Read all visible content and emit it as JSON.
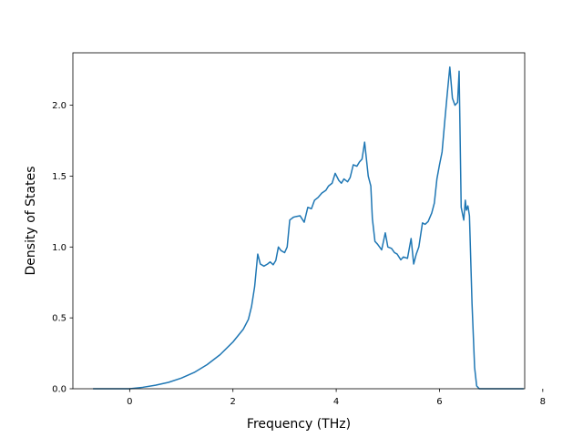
{
  "chart_data": {
    "type": "line",
    "title": "",
    "xlabel": "Frequency (THz)",
    "ylabel": "Density of States",
    "xlim": [
      -1.1,
      7.65
    ],
    "ylim": [
      0.0,
      2.37
    ],
    "xticks": [
      0,
      2,
      4,
      6,
      8
    ],
    "yticks": [
      0.0,
      0.5,
      1.0,
      1.5,
      2.0
    ],
    "xtick_labels": [
      "0",
      "2",
      "4",
      "6",
      "8"
    ],
    "ytick_labels": [
      "0.0",
      "0.5",
      "1.0",
      "1.5",
      "2.0"
    ],
    "grid": false,
    "legend": "none",
    "series": [
      {
        "color": "#1f77b4",
        "x": [
          -0.71,
          0.0,
          0.25,
          0.5,
          0.75,
          1.0,
          1.25,
          1.5,
          1.75,
          2.0,
          2.2,
          2.3,
          2.36,
          2.42,
          2.48,
          2.53,
          2.6,
          2.67,
          2.72,
          2.78,
          2.83,
          2.88,
          2.93,
          3.0,
          3.05,
          3.1,
          3.17,
          3.22,
          3.3,
          3.38,
          3.45,
          3.52,
          3.58,
          3.65,
          3.72,
          3.8,
          3.85,
          3.92,
          3.98,
          4.05,
          4.1,
          4.15,
          4.22,
          4.27,
          4.33,
          4.4,
          4.45,
          4.5,
          4.55,
          4.62,
          4.67,
          4.7,
          4.75,
          4.8,
          4.88,
          4.95,
          5.0,
          5.07,
          5.13,
          5.18,
          5.25,
          5.3,
          5.38,
          5.45,
          5.5,
          5.55,
          5.6,
          5.67,
          5.72,
          5.78,
          5.85,
          5.9,
          5.95,
          6.0,
          6.05,
          6.1,
          6.15,
          6.2,
          6.25,
          6.3,
          6.35,
          6.38,
          6.42,
          6.47,
          6.5,
          6.52,
          6.55,
          6.58,
          6.63,
          6.68,
          6.72,
          6.77,
          6.8,
          6.83,
          6.87,
          6.92,
          6.95,
          7.0,
          7.63
        ],
        "y": [
          0.0,
          0.0,
          0.01,
          0.025,
          0.045,
          0.075,
          0.115,
          0.17,
          0.24,
          0.33,
          0.42,
          0.49,
          0.58,
          0.72,
          0.95,
          0.88,
          0.865,
          0.88,
          0.895,
          0.875,
          0.905,
          1.0,
          0.975,
          0.96,
          1.0,
          1.19,
          1.21,
          1.215,
          1.22,
          1.175,
          1.28,
          1.27,
          1.33,
          1.35,
          1.38,
          1.4,
          1.43,
          1.45,
          1.52,
          1.47,
          1.45,
          1.48,
          1.46,
          1.49,
          1.58,
          1.57,
          1.6,
          1.62,
          1.74,
          1.5,
          1.43,
          1.2,
          1.04,
          1.02,
          0.98,
          1.1,
          1.0,
          0.99,
          0.96,
          0.95,
          0.91,
          0.93,
          0.92,
          1.06,
          0.88,
          0.95,
          1.0,
          1.17,
          1.16,
          1.18,
          1.24,
          1.31,
          1.48,
          1.58,
          1.67,
          1.88,
          2.08,
          2.27,
          2.05,
          2.0,
          2.02,
          2.24,
          1.28,
          1.19,
          1.33,
          1.26,
          1.29,
          1.22,
          0.6,
          0.15,
          0.02,
          0.0,
          0.0,
          0.0,
          0.0,
          0.0,
          0.0,
          0.0,
          0.0
        ]
      }
    ]
  }
}
